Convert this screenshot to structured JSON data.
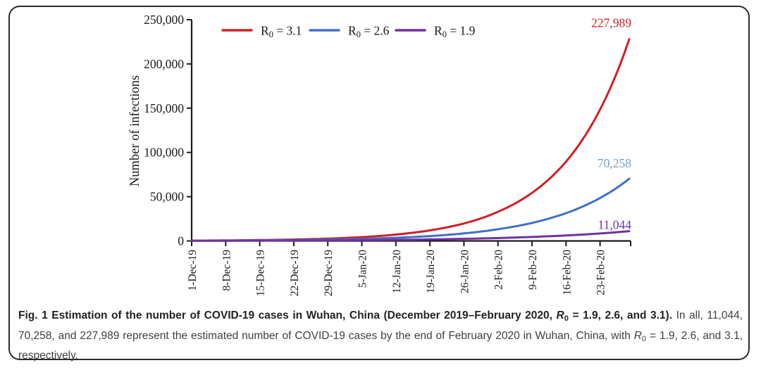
{
  "figure": {
    "caption_segments": [
      {
        "t": "Fig. 1 Estimation of the number of COVID-19 cases in Wuhan, China (December 2019–February 2020, ",
        "s": "b"
      },
      {
        "t": "R",
        "s": "bi"
      },
      {
        "t": "0",
        "s": "bsub"
      },
      {
        "t": " = 1.9, 2.6, and 3.1).",
        "s": "b"
      },
      {
        "t": " In all, 11,044, 70,258, and 227,989 represent the estimated number of COVID-19 cases by the end of February 2020 in Wuhan, China, with ",
        "s": "n"
      },
      {
        "t": "R",
        "s": "i"
      },
      {
        "t": "0",
        "s": "sub"
      },
      {
        "t": " = 1.9, 2.6, and 3.1, respectively.",
        "s": "n"
      }
    ]
  },
  "chart_data": {
    "type": "line",
    "title": "",
    "xlabel": "",
    "ylabel": "Number of infections",
    "ylim": [
      0,
      250000
    ],
    "yticks": [
      0,
      50000,
      100000,
      150000,
      200000,
      250000
    ],
    "ytick_labels": [
      "0",
      "50,000",
      "100,000",
      "150,000",
      "200,000",
      "250,000"
    ],
    "x_tick_labels": [
      "1-Dec-19",
      "8-Dec-19",
      "15-Dec-19",
      "22-Dec-19",
      "29-Dec-19",
      "5-Jan-20",
      "12-Jan-20",
      "19-Jan-20",
      "26-Jan-20",
      "2-Feb-20",
      "9-Feb-20",
      "16-Feb-20",
      "23-Feb-20"
    ],
    "x_tick_days": [
      0,
      7,
      14,
      21,
      28,
      35,
      42,
      49,
      56,
      63,
      70,
      77,
      84
    ],
    "sample_days": [
      0,
      7,
      14,
      21,
      28,
      35,
      42,
      49,
      56,
      63,
      70,
      77,
      84,
      90
    ],
    "x_end_day": 90,
    "grid": false,
    "legend_position": "top",
    "axis_color": "#1a1a1a",
    "series": [
      {
        "name": "R0 = 3.1",
        "name_pre": "R",
        "name_sub": "0",
        "name_post": " = 3.1",
        "color": "#d01f27",
        "end_label": "227,989",
        "end_label_color": "#d01f27",
        "final_value": 227989,
        "values": [
          350,
          580,
          960,
          1600,
          2600,
          4300,
          7200,
          11900,
          19700,
          32900,
          54300,
          89600,
          148500,
          227989
        ]
      },
      {
        "name": "R0 = 2.6",
        "name_pre": "R",
        "name_sub": "0",
        "name_post": " = 2.6",
        "color": "#3f70c8",
        "end_label": "70,258",
        "end_label_color": "#74a0cd",
        "final_value": 70258,
        "values": [
          270,
          410,
          630,
          980,
          1500,
          2300,
          3600,
          5500,
          8500,
          13200,
          20300,
          31400,
          48500,
          70258
        ]
      },
      {
        "name": "R0 = 1.9",
        "name_pre": "R",
        "name_sub": "0",
        "name_post": " = 1.9",
        "color": "#7230a3",
        "end_label": "11,044",
        "end_label_color": "#7230a3",
        "final_value": 11044,
        "values": [
          190,
          260,
          360,
          490,
          680,
          920,
          1270,
          1740,
          2380,
          3270,
          4480,
          6150,
          8430,
          11044
        ]
      }
    ]
  }
}
